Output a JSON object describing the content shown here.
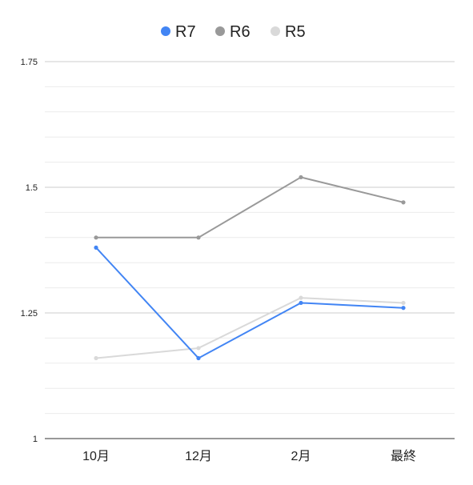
{
  "chart_data": {
    "type": "line",
    "categories": [
      "10月",
      "12月",
      "2月",
      "最終"
    ],
    "series": [
      {
        "name": "R7",
        "values": [
          1.38,
          1.16,
          1.27,
          1.26
        ],
        "color": "#4285f4"
      },
      {
        "name": "R6",
        "values": [
          1.4,
          1.4,
          1.52,
          1.47
        ],
        "color": "#999999"
      },
      {
        "name": "R5",
        "values": [
          1.16,
          1.18,
          1.28,
          1.27
        ],
        "color": "#d9d9d9"
      }
    ],
    "title": "",
    "xlabel": "",
    "ylabel": "",
    "ylim": [
      1,
      1.75
    ],
    "yticks": [
      "1",
      "1.25",
      "1.5",
      "1.75"
    ],
    "grid": true,
    "legend_position": "top-center"
  }
}
